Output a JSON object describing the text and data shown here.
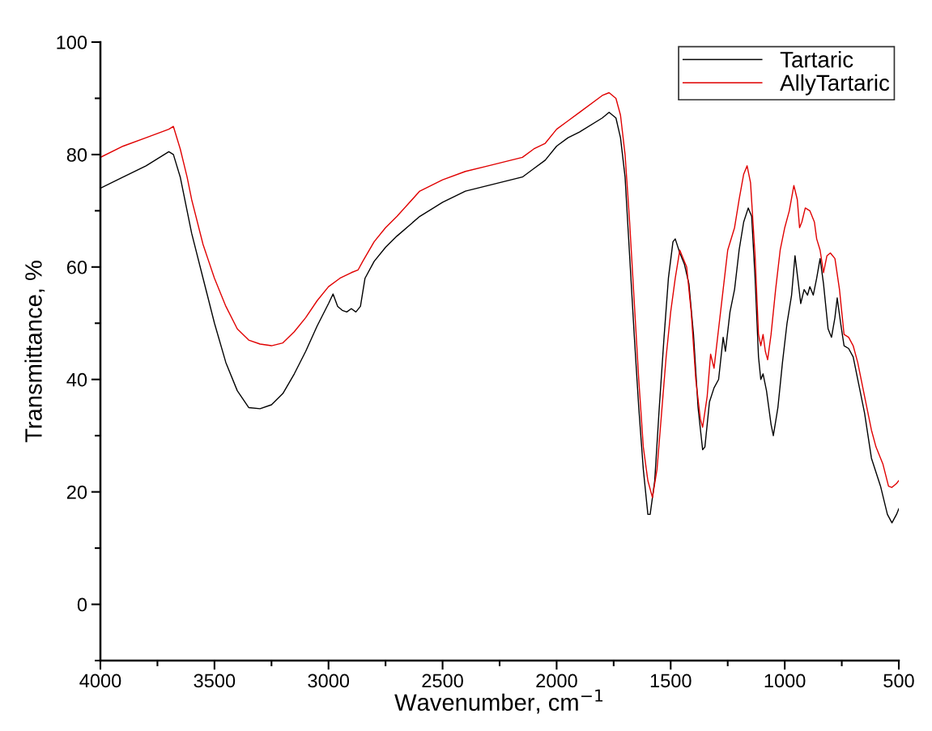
{
  "chart_data": {
    "type": "line",
    "xlabel": "Wavenumber, cm$^{−1}$",
    "ylabel": "Transmittance, %",
    "xlim": [
      4000,
      500
    ],
    "xticks": [
      4000,
      3500,
      3000,
      2500,
      2000,
      1500,
      1000,
      500
    ],
    "ylim": [
      -10,
      100
    ],
    "yticks": [
      0,
      20,
      40,
      60,
      80,
      100
    ],
    "grid": false,
    "legend": "top right",
    "marker": "none",
    "line_style": "solid",
    "series": [
      {
        "name": "Tartaric",
        "color": "#000000",
        "x": [
          4000,
          3900,
          3800,
          3700,
          3680,
          3650,
          3600,
          3550,
          3500,
          3450,
          3400,
          3350,
          3300,
          3250,
          3200,
          3150,
          3100,
          3050,
          3000,
          2980,
          2960,
          2940,
          2920,
          2900,
          2880,
          2860,
          2840,
          2800,
          2750,
          2700,
          2600,
          2500,
          2400,
          2300,
          2200,
          2150,
          2100,
          2050,
          2000,
          1950,
          1900,
          1800,
          1770,
          1740,
          1720,
          1700,
          1680,
          1660,
          1640,
          1620,
          1600,
          1590,
          1570,
          1550,
          1530,
          1510,
          1490,
          1480,
          1460,
          1440,
          1420,
          1400,
          1380,
          1360,
          1350,
          1330,
          1310,
          1290,
          1270,
          1260,
          1240,
          1220,
          1200,
          1180,
          1160,
          1145,
          1130,
          1115,
          1105,
          1095,
          1080,
          1060,
          1050,
          1030,
          1010,
          990,
          970,
          955,
          940,
          930,
          915,
          900,
          890,
          875,
          860,
          845,
          830,
          810,
          795,
          780,
          770,
          755,
          740,
          720,
          700,
          680,
          650,
          620,
          580,
          550,
          530,
          510,
          500
        ],
        "values": [
          74,
          76,
          78,
          80.5,
          80,
          76,
          66,
          58,
          50,
          43,
          38,
          35,
          34.8,
          35.5,
          37.5,
          41,
          45,
          49.5,
          53.5,
          55.2,
          53,
          52.3,
          52,
          52.6,
          52,
          53,
          58,
          61,
          63.5,
          65.5,
          69,
          71.5,
          73.5,
          74.5,
          75.5,
          76,
          77.5,
          79,
          81.5,
          83,
          84,
          86.5,
          87.5,
          86.5,
          83,
          76,
          62,
          48,
          35,
          24,
          16,
          16,
          22,
          35,
          47,
          58,
          64.5,
          65,
          62.5,
          60.5,
          57,
          48,
          35,
          27.5,
          28,
          36,
          38.5,
          40,
          47.5,
          45,
          52,
          56,
          63,
          68,
          70.5,
          69,
          58,
          44,
          40,
          41,
          38,
          32,
          30,
          35,
          43,
          50,
          55,
          62,
          57,
          53.5,
          56,
          55,
          56.5,
          55,
          58,
          61.5,
          57,
          49,
          47.5,
          51,
          54.5,
          50,
          46,
          45.5,
          44,
          40,
          34,
          26,
          21,
          16,
          14.5,
          16,
          17
        ]
      },
      {
        "name": "AllyTartaric",
        "color": "#e00000",
        "x": [
          4000,
          3900,
          3800,
          3700,
          3680,
          3650,
          3620,
          3600,
          3550,
          3500,
          3450,
          3400,
          3350,
          3300,
          3250,
          3200,
          3150,
          3100,
          3050,
          3000,
          2950,
          2900,
          2870,
          2850,
          2800,
          2750,
          2700,
          2600,
          2500,
          2400,
          2300,
          2200,
          2150,
          2100,
          2050,
          2000,
          1950,
          1900,
          1800,
          1770,
          1740,
          1720,
          1700,
          1680,
          1660,
          1640,
          1620,
          1600,
          1580,
          1560,
          1540,
          1520,
          1500,
          1480,
          1460,
          1450,
          1430,
          1410,
          1390,
          1370,
          1360,
          1340,
          1325,
          1310,
          1290,
          1270,
          1250,
          1220,
          1200,
          1180,
          1165,
          1150,
          1130,
          1115,
          1105,
          1095,
          1085,
          1075,
          1060,
          1040,
          1020,
          1000,
          980,
          960,
          945,
          935,
          925,
          910,
          890,
          870,
          860,
          845,
          830,
          815,
          800,
          780,
          760,
          740,
          720,
          700,
          680,
          650,
          620,
          600,
          570,
          545,
          530,
          510,
          500
        ],
        "values": [
          79.5,
          81.5,
          83,
          84.5,
          85,
          81,
          76,
          72,
          64,
          58,
          53,
          49,
          47,
          46.3,
          46,
          46.5,
          48.5,
          51,
          54,
          56.5,
          58,
          59,
          59.5,
          61,
          64.5,
          67,
          69,
          73.5,
          75.5,
          77,
          78,
          79,
          79.5,
          81,
          82,
          84.5,
          86,
          87.5,
          90.5,
          91,
          90,
          87,
          80,
          68,
          54,
          40,
          28,
          22,
          19,
          24,
          34,
          44,
          52,
          58,
          63,
          62,
          60,
          52,
          40,
          33,
          31.5,
          37,
          44.5,
          42,
          49,
          56,
          63,
          67,
          72,
          76.5,
          78,
          75,
          62,
          48,
          46,
          48,
          45,
          43.5,
          48,
          56,
          63,
          67,
          70,
          74.5,
          72,
          67,
          68,
          70.5,
          70,
          68,
          65,
          63,
          59,
          62,
          62.5,
          61.5,
          56,
          48,
          47.5,
          46,
          43,
          37,
          31,
          28,
          25,
          21,
          20.8,
          21.5,
          22
        ]
      }
    ]
  }
}
